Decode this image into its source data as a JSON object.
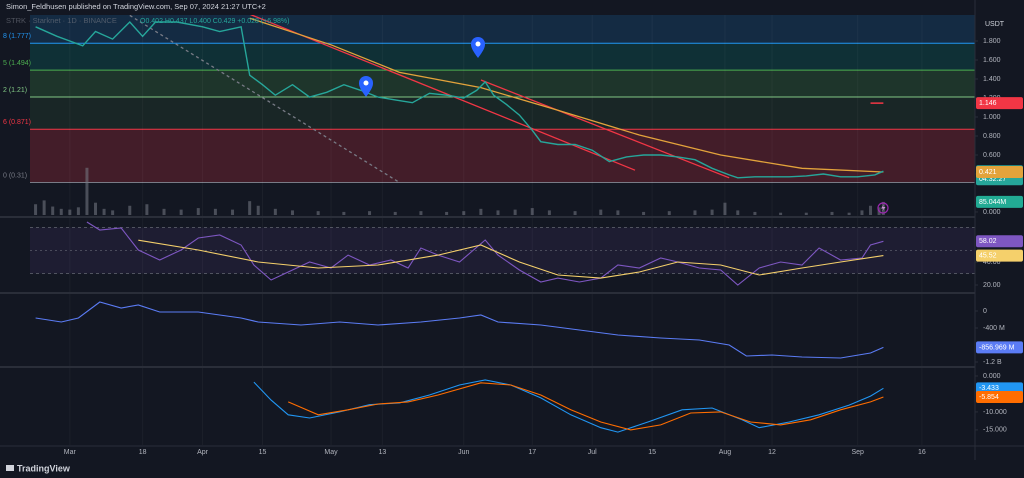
{
  "chart_data": [
    {
      "type": "line",
      "title": "Simon_Feldhusen published on TradingView.com, Sep 07, 2024 21:27 UTC+2",
      "subtitle": "STRK · Starknet · 1D · BINANCE",
      "ohlc": "O0.402 H0.437 L0.400 C0.429 +0.028 (+6.98%)",
      "currency": "USDT",
      "watermark": "TradingView",
      "xlim": [
        -9.3,
        211.4
      ],
      "xticks": [
        {
          "value": 0,
          "label": "Mar"
        },
        {
          "value": 17,
          "label": "18"
        },
        {
          "value": 31,
          "label": "Apr"
        },
        {
          "value": 45,
          "label": "15"
        },
        {
          "value": 61,
          "label": "May"
        },
        {
          "value": 73,
          "label": "13"
        },
        {
          "value": 92,
          "label": "Jun"
        },
        {
          "value": 108,
          "label": "17"
        },
        {
          "value": 122,
          "label": "Jul"
        },
        {
          "value": 136,
          "label": "15"
        },
        {
          "value": 153,
          "label": "Aug"
        },
        {
          "value": 164,
          "label": "12"
        },
        {
          "value": 184,
          "label": "Sep"
        },
        {
          "value": 199,
          "label": "16"
        }
      ],
      "ylim": [
        -0.032,
        2.074
      ],
      "yticks": [
        {
          "value": 1.8,
          "label": "1.800"
        },
        {
          "value": 1.6,
          "label": "1.600"
        },
        {
          "value": 1.4,
          "label": "1.400"
        },
        {
          "value": 1.2,
          "label": "1.200"
        },
        {
          "value": 1.0,
          "label": "1.000"
        },
        {
          "value": 0.8,
          "label": "0.800"
        },
        {
          "value": 0.6,
          "label": "0.600"
        },
        {
          "value": 0.4,
          "label": "0.400"
        },
        {
          "value": 0,
          "label": "0.000"
        }
      ],
      "grid": true,
      "color": "#26a69a",
      "x": [
        -8,
        -3,
        0,
        3,
        6,
        10,
        14,
        17,
        20,
        25,
        31,
        35,
        40,
        42,
        45,
        48,
        52,
        56,
        60,
        64,
        68,
        72,
        76,
        80,
        84,
        88,
        92,
        95,
        97,
        99,
        102,
        105,
        108,
        110,
        114,
        118,
        122,
        126,
        130,
        134,
        138,
        142,
        146,
        150,
        154,
        156,
        160,
        164,
        168,
        172,
        176,
        180,
        184,
        188,
        190
      ],
      "values": [
        1.95,
        1.85,
        1.8,
        1.75,
        1.9,
        1.82,
        2.0,
        1.85,
        2.0,
        2.0,
        1.95,
        1.9,
        1.95,
        1.44,
        1.34,
        1.23,
        1.34,
        1.21,
        1.26,
        1.34,
        1.28,
        1.21,
        1.18,
        1.15,
        1.25,
        1.23,
        1.2,
        1.28,
        1.37,
        1.23,
        1.13,
        1.02,
        0.86,
        0.74,
        0.71,
        0.71,
        0.65,
        0.53,
        0.58,
        0.6,
        0.6,
        0.58,
        0.55,
        0.46,
        0.39,
        0.36,
        0.37,
        0.37,
        0.37,
        0.38,
        0.4,
        0.37,
        0.37,
        0.39,
        0.429
      ],
      "countdown": "04:32:27",
      "ma": {
        "color": "#e3a33b",
        "x": [
          42,
          61,
          77,
          96,
          114,
          133,
          152,
          171,
          190
        ],
        "values": [
          2.04,
          1.76,
          1.47,
          1.31,
          1.07,
          0.81,
          0.6,
          0.46,
          0.421
        ]
      },
      "fib_top_color": "rgba(33,150,243,0.16)",
      "fib_levels": [
        {
          "label": "8 (1.777)",
          "value": 1.777,
          "color": "rgba(0,150,136,0.2)",
          "line_color": "#2196f3"
        },
        {
          "label": "5 (1.494)",
          "value": 1.494,
          "color": "rgba(76,175,80,0.2)",
          "line_color": "#4caf50"
        },
        {
          "label": "2 (1.21)",
          "value": 1.21,
          "color": "rgba(76,175,80,0.1)",
          "line_color": "#81c784"
        },
        {
          "label": "6 (0.871)",
          "value": 0.871,
          "color": "rgba(242,54,69,0.22)",
          "line_color": "#f23645"
        },
        {
          "label": "0 (0.31)",
          "value": 0.31,
          "color": "rgba(0,0,0,0)",
          "line_color": "#787b86"
        }
      ],
      "trendlines": [
        {
          "color": "#f23645",
          "dashed": false,
          "x": [
            41,
            132
          ],
          "values": [
            2.1,
            0.44
          ]
        },
        {
          "color": "#f23645",
          "dashed": false,
          "x": [
            96,
            154
          ],
          "values": [
            1.39,
            0.36
          ]
        },
        {
          "color": "#787b86",
          "dashed": true,
          "x": [
            14,
            77
          ],
          "values": [
            2.07,
            0.31
          ]
        }
      ],
      "alert": {
        "value": 1.146,
        "color": "#f23645",
        "x": [
          187,
          190
        ]
      },
      "volume": {
        "color": "rgba(120,123,134,0.55)",
        "ylim": [
          0,
          1300
        ],
        "last_label": "85.044M",
        "badge_color": "#22ab94",
        "x": [
          -8,
          -6,
          -4,
          -2,
          0,
          2,
          4,
          6,
          8,
          10,
          14,
          18,
          22,
          26,
          30,
          34,
          38,
          42,
          44,
          48,
          52,
          58,
          64,
          70,
          76,
          82,
          88,
          92,
          96,
          100,
          104,
          108,
          112,
          118,
          124,
          128,
          134,
          140,
          146,
          150,
          153,
          156,
          160,
          166,
          172,
          178,
          182,
          185,
          187,
          189,
          190
        ],
        "values": [
          70,
          95,
          55,
          40,
          35,
          50,
          307,
          80,
          40,
          30,
          60,
          70,
          40,
          35,
          45,
          40,
          35,
          90,
          60,
          40,
          30,
          25,
          20,
          25,
          20,
          25,
          20,
          25,
          40,
          30,
          35,
          45,
          30,
          25,
          35,
          30,
          20,
          25,
          30,
          35,
          80,
          30,
          20,
          15,
          15,
          20,
          15,
          30,
          60,
          50,
          85.044
        ]
      }
    },
    {
      "type": "line",
      "ylim": [
        13.9,
        77.4
      ],
      "yticks": [
        {
          "value": 40,
          "label": "40.00"
        },
        {
          "value": 20,
          "label": "20.00"
        }
      ],
      "bands": [
        30,
        70
      ],
      "midline": 50,
      "band_color": "rgba(126,87,194,0.1)",
      "series": [
        {
          "color": "#7e57c2",
          "x": [
            4,
            7,
            12,
            16,
            21,
            26,
            30,
            35,
            40,
            43,
            47,
            51,
            56,
            61,
            65,
            70,
            75,
            79,
            82,
            86,
            91,
            97,
            100,
            105,
            110,
            114,
            119,
            124,
            128,
            133,
            138,
            142,
            147,
            152,
            156,
            161,
            166,
            171,
            175,
            180,
            185,
            187,
            190
          ],
          "values": [
            74.8,
            67.8,
            69.6,
            50.4,
            41.7,
            50.4,
            60.9,
            63.5,
            54.8,
            37.4,
            24.3,
            31.3,
            40,
            34.8,
            46,
            37.4,
            41.7,
            34.8,
            52.2,
            46,
            40,
            59.1,
            46,
            33,
            22.6,
            26,
            22.6,
            26,
            37.4,
            34.8,
            43.5,
            40,
            34.8,
            33,
            20,
            34.8,
            40,
            37.4,
            52.2,
            41.7,
            43.5,
            54.8,
            58.02
          ]
        },
        {
          "color": "#f5d06b",
          "x": [
            16,
            30,
            44,
            58,
            72,
            86,
            96,
            105,
            114,
            124,
            133,
            142,
            152,
            161,
            171,
            180,
            190
          ],
          "values": [
            59,
            50.4,
            40,
            34.8,
            37.4,
            46,
            54.8,
            40,
            28.7,
            26,
            31.3,
            40,
            37.4,
            28.7,
            34.8,
            40,
            45.52
          ]
        }
      ]
    },
    {
      "type": "line",
      "ylim": [
        -1294,
        376
      ],
      "yticks": [
        0,
        {
          "value": -400,
          "label": "-400 M"
        },
        {
          "value": -1200,
          "label": "-1.2 B"
        }
      ],
      "series": [
        {
          "color": "#5b7cf5",
          "last_label": "-856.969 M",
          "x": [
            -8,
            -2,
            2,
            7,
            12,
            16,
            21,
            30,
            40,
            44,
            54,
            63,
            72,
            82,
            91,
            96,
            100,
            110,
            119,
            128,
            138,
            147,
            154,
            158,
            164,
            171,
            180,
            187,
            190
          ],
          "values": [
            -165,
            -259,
            -165,
            212,
            71,
            141,
            -24,
            -24,
            -165,
            -259,
            -329,
            -259,
            -329,
            -259,
            -165,
            -94,
            -259,
            -329,
            -447,
            -565,
            -635,
            -682,
            -800,
            -1059,
            -1035,
            -1082,
            -1106,
            -988,
            -856.969
          ]
        }
      ]
    },
    {
      "type": "line",
      "ylim": [
        -19.2,
        1.94
      ],
      "yticks": [
        {
          "value": 0,
          "label": "0.000"
        },
        {
          "value": -10,
          "label": "-10.000"
        },
        {
          "value": -15,
          "label": "-15.000"
        }
      ],
      "series": [
        {
          "color": "#2196f3",
          "x": [
            43,
            47,
            51,
            56,
            63,
            70,
            77,
            84,
            91,
            97,
            103,
            110,
            117,
            124,
            128,
            135,
            143,
            150,
            157,
            161,
            168,
            175,
            182,
            187,
            190
          ],
          "values": [
            -1.7,
            -6.7,
            -10.8,
            -11.7,
            -10,
            -8,
            -7.5,
            -5.3,
            -2.5,
            -1.1,
            -2.5,
            -6.1,
            -10.8,
            -14.4,
            -15.6,
            -12.8,
            -9.4,
            -8.9,
            -12.2,
            -14.4,
            -12.8,
            -10.8,
            -8.1,
            -5.6,
            -3.433
          ]
        },
        {
          "color": "#ff6d00",
          "x": [
            51,
            58,
            65,
            72,
            79,
            86,
            96,
            103,
            110,
            117,
            124,
            131,
            138,
            145,
            152,
            159,
            166,
            173,
            180,
            187,
            190
          ],
          "values": [
            -7.2,
            -10.8,
            -9.4,
            -7.8,
            -7.2,
            -5.3,
            -1.9,
            -2.5,
            -5.3,
            -9.4,
            -12.8,
            -15,
            -13.6,
            -10.3,
            -10,
            -12.8,
            -13.6,
            -12.2,
            -9.4,
            -7.2,
            -5.854
          ]
        }
      ]
    }
  ]
}
